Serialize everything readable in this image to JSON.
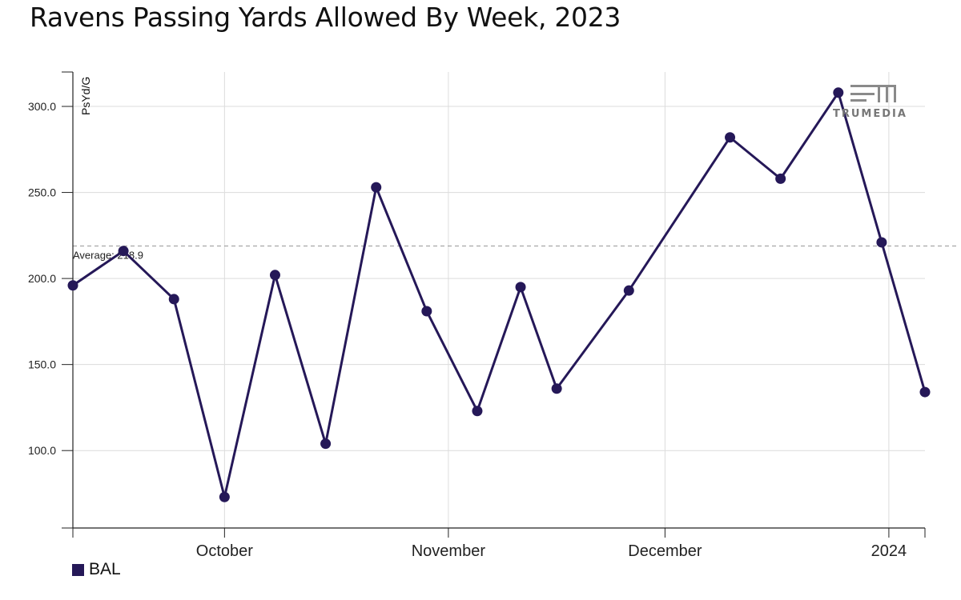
{
  "title": "Ravens Passing Yards Allowed By Week, 2023",
  "logo_text": "TRUMEDIA",
  "colors": {
    "series": "#251858",
    "grid": "#dcdcdc",
    "axis": "#222222",
    "average": "#999999"
  },
  "chart_data": {
    "type": "line",
    "title": "Ravens Passing Yards Allowed By Week, 2023",
    "ylabel": "PsYd/G",
    "xlabel": "",
    "ylim": [
      55,
      320
    ],
    "xlim": [
      "2023-09-10",
      "2024-01-06"
    ],
    "yticks": [
      100,
      150,
      200,
      250,
      300
    ],
    "ytick_labels": [
      "100.0",
      "150.0",
      "200.0",
      "250.0",
      "300.0"
    ],
    "xticks": [
      "2023-10-01",
      "2023-11-01",
      "2023-12-01",
      "2024-01-01"
    ],
    "xtick_labels": [
      "October",
      "November",
      "December",
      "2024"
    ],
    "grid": true,
    "legend": "bottom-left",
    "average": {
      "label": "Average: 218.9",
      "value": 218.9
    },
    "series": [
      {
        "name": "BAL",
        "color": "#251858",
        "x": [
          "2023-09-10",
          "2023-09-17",
          "2023-09-24",
          "2023-10-01",
          "2023-10-08",
          "2023-10-15",
          "2023-10-22",
          "2023-10-29",
          "2023-11-05",
          "2023-11-11",
          "2023-11-16",
          "2023-11-26",
          "2023-12-10",
          "2023-12-17",
          "2023-12-25",
          "2023-12-31",
          "2024-01-06"
        ],
        "y": [
          196,
          216,
          188,
          73,
          202,
          104,
          253,
          181,
          123,
          195,
          136,
          193,
          282,
          258,
          308,
          221,
          134
        ]
      }
    ]
  }
}
